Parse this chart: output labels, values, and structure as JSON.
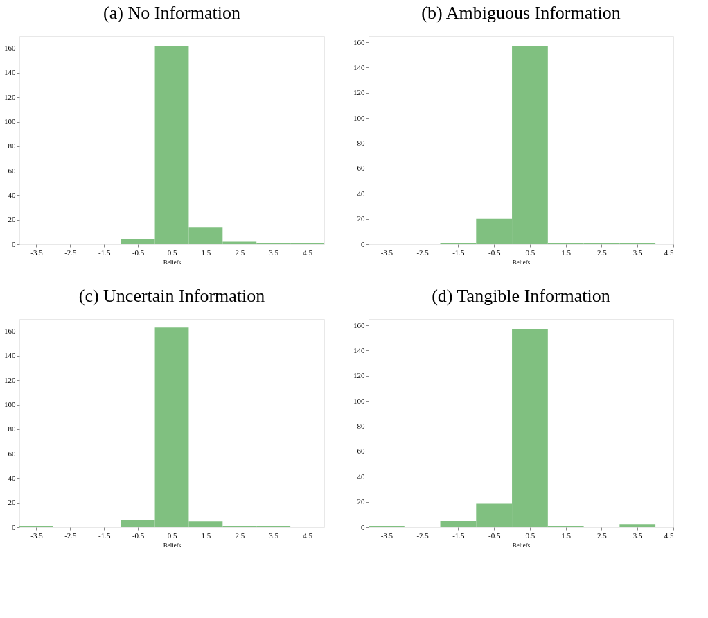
{
  "chart_data": [
    {
      "type": "histogram",
      "title": "(a) No Information",
      "xlabel": "Beliefs",
      "bins": [
        -1,
        0,
        1,
        2,
        3,
        4,
        5
      ],
      "values": [
        4,
        162,
        14,
        2,
        1,
        1
      ],
      "color": "#80c080",
      "xlim": [
        -4,
        5
      ],
      "xticks": [
        -3.5,
        -2.5,
        -1.5,
        -0.5,
        0.5,
        1.5,
        2.5,
        3.5,
        4.5
      ],
      "ylim": [
        0,
        170
      ],
      "yticks": [
        0,
        20,
        40,
        60,
        80,
        100,
        120,
        140,
        160
      ],
      "grid": false
    },
    {
      "type": "histogram",
      "title": "(b) Ambiguous Information",
      "xlabel": "Beliefs",
      "bins": [
        -2,
        -1,
        0,
        1,
        2,
        3,
        4
      ],
      "values": [
        1,
        20,
        157,
        1,
        1,
        1
      ],
      "color": "#80c080",
      "xlim": [
        -4,
        4.5
      ],
      "xticks": [
        -3.5,
        -2.5,
        -1.5,
        -0.5,
        0.5,
        1.5,
        2.5,
        3.5,
        4.5
      ],
      "ylim": [
        0,
        165
      ],
      "yticks": [
        0,
        20,
        40,
        60,
        80,
        100,
        120,
        140,
        160
      ],
      "grid": false
    },
    {
      "type": "histogram",
      "title": "(c) Uncertain Information",
      "xlabel": "Beliefs",
      "bins": [
        -4,
        -3,
        -2,
        -1,
        0,
        1,
        2,
        3,
        4
      ],
      "values": [
        1,
        0,
        0,
        6,
        163,
        5,
        1,
        1
      ],
      "color": "#80c080",
      "xlim": [
        -4,
        5
      ],
      "xticks": [
        -3.5,
        -2.5,
        -1.5,
        -0.5,
        0.5,
        1.5,
        2.5,
        3.5,
        4.5
      ],
      "ylim": [
        0,
        170
      ],
      "yticks": [
        0,
        20,
        40,
        60,
        80,
        100,
        120,
        140,
        160
      ],
      "grid": false
    },
    {
      "type": "histogram",
      "title": "(d) Tangible Information",
      "xlabel": "Beliefs",
      "bins": [
        -4,
        -3,
        -2,
        -1,
        0,
        1,
        2,
        3,
        4
      ],
      "values": [
        1,
        0,
        5,
        19,
        157,
        1,
        0,
        2
      ],
      "color": "#80c080",
      "xlim": [
        -4,
        4.5
      ],
      "xticks": [
        -3.5,
        -2.5,
        -1.5,
        -0.5,
        0.5,
        1.5,
        2.5,
        3.5,
        4.5
      ],
      "ylim": [
        0,
        165
      ],
      "yticks": [
        0,
        20,
        40,
        60,
        80,
        100,
        120,
        140,
        160
      ],
      "grid": false
    }
  ]
}
